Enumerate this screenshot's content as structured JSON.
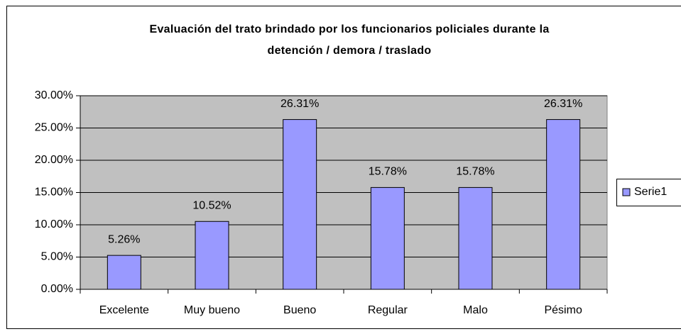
{
  "chart_data": {
    "type": "bar",
    "title": [
      "Evaluación del trato brindado por los funcionarios policiales durante la",
      "detención / demora / traslado"
    ],
    "categories": [
      "Excelente",
      "Muy bueno",
      "Bueno",
      "Regular",
      "Malo",
      "Pésimo"
    ],
    "series": [
      {
        "name": "Serie1",
        "color": "#9999ff",
        "values": [
          5.26,
          10.52,
          26.31,
          15.78,
          15.78,
          26.31
        ],
        "value_labels": [
          "5.26%",
          "10.52%",
          "26.31%",
          "15.78%",
          "15.78%",
          "26.31%"
        ]
      }
    ],
    "ylim": [
      0,
      30
    ],
    "yticks": [
      {
        "value": 0,
        "label": "0.00%"
      },
      {
        "value": 5,
        "label": "5.00%"
      },
      {
        "value": 10,
        "label": "10.00%"
      },
      {
        "value": 15,
        "label": "15.00%"
      },
      {
        "value": 20,
        "label": "20.00%"
      },
      {
        "value": 25,
        "label": "25.00%"
      },
      {
        "value": 30,
        "label": "30.00%"
      }
    ],
    "grid": true,
    "legend": "right"
  }
}
